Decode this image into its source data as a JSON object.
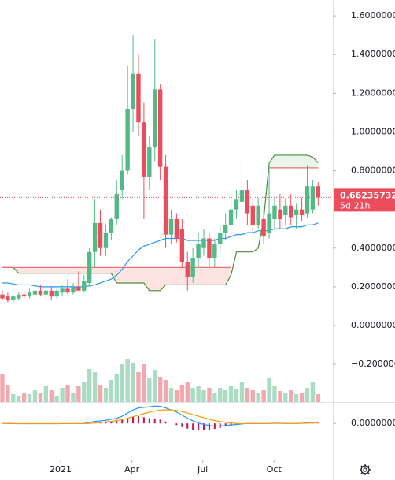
{
  "chart_data": [
    {
      "type": "candlestick",
      "x": [
        0,
        1,
        2,
        3,
        4,
        5,
        6,
        7,
        8,
        9,
        10,
        11,
        12,
        13,
        14,
        15,
        16,
        17,
        18,
        19,
        20,
        21,
        22,
        23,
        24,
        25,
        26,
        27,
        28,
        29,
        30,
        31,
        32,
        33,
        34,
        35,
        36,
        37,
        38,
        39,
        40,
        41,
        42,
        43,
        44,
        45,
        46,
        47,
        48,
        49,
        50,
        51,
        52,
        53,
        54,
        55,
        56,
        57,
        58
      ],
      "open": [
        0.16,
        0.15,
        0.13,
        0.14,
        0.16,
        0.15,
        0.16,
        0.18,
        0.16,
        0.18,
        0.15,
        0.17,
        0.19,
        0.17,
        0.2,
        0.18,
        0.22,
        0.38,
        0.53,
        0.4,
        0.48,
        0.55,
        0.7,
        0.8,
        1.12,
        1.3,
        1.05,
        0.77,
        0.92,
        1.22,
        0.82,
        0.47,
        0.55,
        0.5,
        0.33,
        0.25,
        0.35,
        0.4,
        0.45,
        0.35,
        0.42,
        0.48,
        0.52,
        0.6,
        0.64,
        0.7,
        0.62,
        0.52,
        0.55,
        0.48,
        0.55,
        0.6,
        0.57,
        0.62,
        0.57,
        0.6,
        0.58,
        0.6,
        0.72
      ],
      "high": [
        0.18,
        0.17,
        0.16,
        0.17,
        0.18,
        0.19,
        0.2,
        0.21,
        0.19,
        0.2,
        0.19,
        0.21,
        0.24,
        0.22,
        0.28,
        0.26,
        0.4,
        0.65,
        0.6,
        0.52,
        0.56,
        0.75,
        0.88,
        1.34,
        1.5,
        1.4,
        1.15,
        0.98,
        1.48,
        1.25,
        0.88,
        0.6,
        0.58,
        0.55,
        0.38,
        0.4,
        0.48,
        0.5,
        0.48,
        0.45,
        0.52,
        0.58,
        0.65,
        0.7,
        0.85,
        0.75,
        0.66,
        0.66,
        0.6,
        0.84,
        0.66,
        0.68,
        0.66,
        0.68,
        0.63,
        0.66,
        0.83,
        0.75,
        0.74
      ],
      "low": [
        0.13,
        0.12,
        0.12,
        0.13,
        0.14,
        0.14,
        0.15,
        0.15,
        0.14,
        0.13,
        0.14,
        0.15,
        0.16,
        0.16,
        0.18,
        0.17,
        0.2,
        0.3,
        0.36,
        0.36,
        0.44,
        0.52,
        0.65,
        0.78,
        1.0,
        0.98,
        0.55,
        0.7,
        0.85,
        0.75,
        0.4,
        0.42,
        0.43,
        0.3,
        0.18,
        0.22,
        0.3,
        0.36,
        0.3,
        0.3,
        0.38,
        0.44,
        0.48,
        0.55,
        0.58,
        0.52,
        0.48,
        0.5,
        0.42,
        0.45,
        0.5,
        0.5,
        0.52,
        0.52,
        0.5,
        0.54,
        0.56,
        0.58,
        0.62
      ],
      "close": [
        0.14,
        0.13,
        0.15,
        0.16,
        0.15,
        0.17,
        0.18,
        0.16,
        0.18,
        0.15,
        0.18,
        0.19,
        0.17,
        0.2,
        0.18,
        0.23,
        0.38,
        0.53,
        0.4,
        0.48,
        0.55,
        0.68,
        0.8,
        1.12,
        1.3,
        1.05,
        0.77,
        0.92,
        1.22,
        0.82,
        0.47,
        0.55,
        0.45,
        0.33,
        0.25,
        0.35,
        0.42,
        0.45,
        0.35,
        0.42,
        0.48,
        0.52,
        0.6,
        0.65,
        0.7,
        0.58,
        0.52,
        0.62,
        0.46,
        0.58,
        0.62,
        0.55,
        0.62,
        0.56,
        0.6,
        0.57,
        0.72,
        0.72,
        0.66235732
      ],
      "up_color": "#53b987",
      "down_color": "#eb4d5c",
      "volume": [
        35,
        22,
        10,
        8,
        12,
        10,
        15,
        12,
        20,
        15,
        8,
        18,
        22,
        12,
        20,
        25,
        42,
        38,
        22,
        18,
        28,
        35,
        48,
        55,
        50,
        38,
        48,
        30,
        40,
        32,
        28,
        18,
        15,
        22,
        25,
        18,
        20,
        15,
        18,
        12,
        18,
        15,
        20,
        16,
        25,
        18,
        15,
        12,
        15,
        30,
        20,
        14,
        12,
        15,
        10,
        12,
        18,
        25,
        10
      ],
      "volume_up_color": "#a9dcc3",
      "volume_down_color": "#f4a7ae",
      "vlim": [
        0,
        60
      ],
      "ma": {
        "color": "#2196f3",
        "values": [
          0.22,
          0.22,
          0.215,
          0.21,
          0.21,
          0.21,
          0.205,
          0.2,
          0.2,
          0.2,
          0.2,
          0.2,
          0.2,
          0.2,
          0.2,
          0.2,
          0.205,
          0.21,
          0.22,
          0.23,
          0.24,
          0.26,
          0.29,
          0.33,
          0.36,
          0.39,
          0.41,
          0.42,
          0.43,
          0.44,
          0.45,
          0.45,
          0.45,
          0.45,
          0.44,
          0.44,
          0.44,
          0.44,
          0.44,
          0.44,
          0.45,
          0.45,
          0.46,
          0.47,
          0.47,
          0.48,
          0.48,
          0.49,
          0.49,
          0.49,
          0.5,
          0.5,
          0.5,
          0.51,
          0.51,
          0.51,
          0.52,
          0.52,
          0.53
        ]
      },
      "span_a": {
        "color": "#4a8a3b",
        "fill": "rgba(76,175,80,0.12)",
        "values": [
          0.3,
          0.3,
          0.3,
          0.27,
          0.27,
          0.27,
          0.27,
          0.27,
          0.27,
          0.27,
          0.27,
          0.27,
          0.27,
          0.27,
          0.27,
          0.27,
          0.27,
          0.27,
          0.27,
          0.27,
          0.27,
          0.22,
          0.22,
          0.22,
          0.22,
          0.22,
          0.22,
          0.18,
          0.18,
          0.18,
          0.21,
          0.21,
          0.21,
          0.21,
          0.21,
          0.21,
          0.21,
          0.21,
          0.21,
          0.21,
          0.21,
          0.21,
          0.26,
          0.38,
          0.38,
          0.38,
          0.38,
          0.4,
          0.55,
          0.84,
          0.88,
          0.88,
          0.88,
          0.88,
          0.88,
          0.88,
          0.88,
          0.87,
          0.84
        ]
      },
      "span_b": {
        "color": "#e57373",
        "fill": "rgba(244,67,54,0.15)",
        "values": [
          0.3,
          0.3,
          0.3,
          0.3,
          0.3,
          0.3,
          0.3,
          0.3,
          0.3,
          0.3,
          0.3,
          0.3,
          0.3,
          0.3,
          0.3,
          0.3,
          0.3,
          0.3,
          0.3,
          0.3,
          0.3,
          0.3,
          0.3,
          0.3,
          0.3,
          0.3,
          0.3,
          0.3,
          0.3,
          0.3,
          0.3,
          0.3,
          0.3,
          0.3,
          0.3,
          0.3,
          0.3,
          0.3,
          0.3,
          0.3,
          0.3,
          0.3,
          0.3,
          null,
          null,
          null,
          null,
          null,
          null,
          0.815,
          0.815,
          0.815,
          0.815,
          0.815,
          0.815,
          0.815,
          0.815,
          0.815,
          0.815
        ]
      },
      "xlim": [
        -0.43,
        60.7
      ],
      "ylim": [
        -0.395,
        1.682
      ],
      "yticks": [
        {
          "value": 1.6,
          "label": "1.60000000"
        },
        {
          "value": 1.4,
          "label": "1.40000000"
        },
        {
          "value": 1.2,
          "label": "1.20000000"
        },
        {
          "value": 1.0,
          "label": "1.00000000"
        },
        {
          "value": 0.8,
          "label": "0.80000000"
        },
        {
          "value": 0.4,
          "label": "0.40000000"
        },
        {
          "value": 0.2,
          "label": "0.20000000"
        },
        {
          "value": 0,
          "label": "0.00000000"
        },
        {
          "value": -0.2,
          "label": "−0.20000000"
        }
      ],
      "countdown": "5d 21h"
    },
    {
      "type": "macd",
      "x": [
        0,
        1,
        2,
        3,
        4,
        5,
        6,
        7,
        8,
        9,
        10,
        11,
        12,
        13,
        14,
        15,
        16,
        17,
        18,
        19,
        20,
        21,
        22,
        23,
        24,
        25,
        26,
        27,
        28,
        29,
        30,
        31,
        32,
        33,
        34,
        35,
        36,
        37,
        38,
        39,
        40,
        41,
        42,
        43,
        44,
        45,
        46,
        47,
        48,
        49,
        50,
        51,
        52,
        53,
        54,
        55,
        56,
        57,
        58
      ],
      "macd": {
        "color": "#2196f3",
        "values": [
          0,
          0,
          -0.002,
          -0.003,
          -0.003,
          -0.003,
          -0.003,
          -0.003,
          -0.003,
          -0.003,
          -0.003,
          -0.002,
          -0.002,
          -0.002,
          -0.001,
          0,
          0.01,
          0.02,
          0.025,
          0.03,
          0.04,
          0.05,
          0.07,
          0.1,
          0.13,
          0.15,
          0.155,
          0.16,
          0.168,
          0.165,
          0.15,
          0.13,
          0.11,
          0.08,
          0.05,
          0.025,
          0.005,
          -0.01,
          -0.02,
          -0.025,
          -0.025,
          -0.02,
          -0.015,
          -0.01,
          -0.005,
          0,
          0,
          0,
          -0.002,
          0,
          0.002,
          0.002,
          0,
          0,
          0,
          0.002,
          0.006,
          0.01,
          0.012
        ]
      },
      "signal": {
        "color": "#ff9800",
        "values": [
          0,
          0,
          -0.001,
          -0.002,
          -0.002,
          -0.002,
          -0.002,
          -0.002,
          -0.002,
          -0.002,
          -0.002,
          -0.002,
          -0.002,
          -0.002,
          -0.002,
          -0.001,
          0,
          0.005,
          0.01,
          0.015,
          0.02,
          0.028,
          0.036,
          0.05,
          0.065,
          0.08,
          0.095,
          0.11,
          0.12,
          0.128,
          0.132,
          0.13,
          0.125,
          0.115,
          0.1,
          0.085,
          0.07,
          0.055,
          0.04,
          0.028,
          0.018,
          0.01,
          0.004,
          0,
          -0.002,
          -0.002,
          -0.002,
          -0.001,
          -0.001,
          -0.001,
          0,
          0,
          0,
          0,
          0,
          0.001,
          0.002,
          0.004,
          0.006
        ]
      },
      "histogram": {
        "color": "#c2185b",
        "values": [
          0,
          0,
          0,
          0,
          0,
          0,
          0,
          0,
          0,
          0,
          0,
          0,
          0,
          0,
          0,
          0,
          0.01,
          0.015,
          0.015,
          0.015,
          0.02,
          0.022,
          0.034,
          0.05,
          0.065,
          0.07,
          0.06,
          0.05,
          0.048,
          0.037,
          0.018,
          0,
          -0.015,
          -0.035,
          -0.05,
          -0.06,
          -0.065,
          -0.065,
          -0.06,
          -0.053,
          -0.043,
          -0.03,
          -0.019,
          -0.01,
          -0.003,
          0.002,
          0.002,
          0.001,
          -0.001,
          0.001,
          0.002,
          0.002,
          0,
          0,
          0,
          0.001,
          0.004,
          0.006,
          0.006
        ]
      },
      "xlim": [
        -0.43,
        60.7
      ],
      "ylim": [
        -0.35,
        0.2
      ],
      "yticks": [
        {
          "value": 0,
          "label": "0.00000000"
        }
      ],
      "xticks": [
        {
          "value": 10.7,
          "label": "2021"
        },
        {
          "value": 23.8,
          "label": "Apr"
        },
        {
          "value": 36.8,
          "label": "Jul"
        },
        {
          "value": 49.9,
          "label": "Oct"
        }
      ]
    }
  ]
}
